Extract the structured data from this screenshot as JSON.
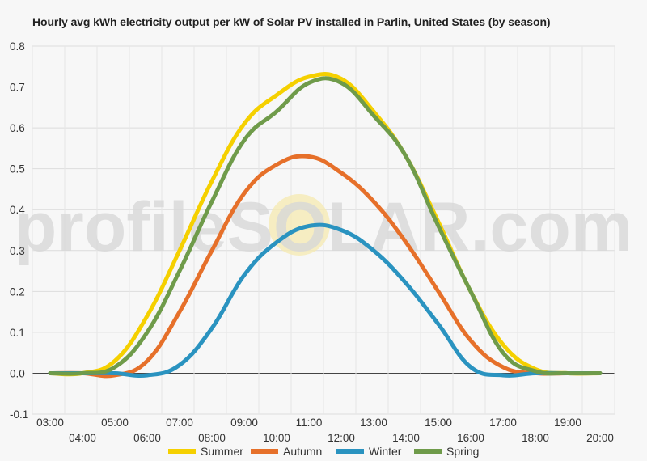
{
  "chart_data": {
    "type": "line",
    "title": "Hourly avg kWh electricity output per kW of Solar PV installed in Parlin, United States (by season)",
    "xlabel": "",
    "ylabel": "",
    "ylim": [
      -0.1,
      0.8
    ],
    "yticks": [
      "-0.1",
      "0.0",
      "0.1",
      "0.2",
      "0.3",
      "0.4",
      "0.5",
      "0.6",
      "0.7",
      "0.8"
    ],
    "x": [
      "03:00",
      "04:00",
      "05:00",
      "06:00",
      "07:00",
      "08:00",
      "09:00",
      "10:00",
      "11:00",
      "12:00",
      "13:00",
      "14:00",
      "15:00",
      "16:00",
      "17:00",
      "18:00",
      "19:00",
      "20:00"
    ],
    "grid": true,
    "legend_position": "bottom",
    "watermark": "profileSOLAR.com",
    "series": [
      {
        "name": "Summer",
        "color": "#f5d000",
        "values": [
          0.0,
          0.0,
          0.03,
          0.14,
          0.3,
          0.47,
          0.61,
          0.68,
          0.725,
          0.72,
          0.64,
          0.53,
          0.37,
          0.2,
          0.07,
          0.01,
          0.0,
          0.0
        ]
      },
      {
        "name": "Autumn",
        "color": "#e6702a",
        "values": [
          0.0,
          0.0,
          -0.005,
          0.03,
          0.15,
          0.3,
          0.44,
          0.51,
          0.53,
          0.49,
          0.42,
          0.32,
          0.2,
          0.08,
          0.015,
          0.0,
          0.0,
          0.0
        ]
      },
      {
        "name": "Winter",
        "color": "#2a93c0",
        "values": [
          0.0,
          0.0,
          0.0,
          -0.005,
          0.02,
          0.11,
          0.24,
          0.32,
          0.36,
          0.35,
          0.3,
          0.22,
          0.12,
          0.015,
          -0.005,
          0.0,
          0.0,
          0.0
        ]
      },
      {
        "name": "Spring",
        "color": "#6f9b4a",
        "values": [
          0.0,
          0.0,
          0.015,
          0.1,
          0.25,
          0.42,
          0.57,
          0.64,
          0.71,
          0.71,
          0.63,
          0.53,
          0.36,
          0.2,
          0.05,
          0.005,
          0.0,
          0.0
        ]
      }
    ]
  }
}
